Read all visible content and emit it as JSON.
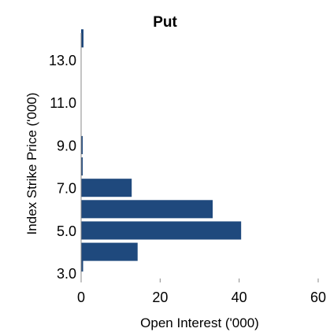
{
  "chart_data": {
    "type": "bar",
    "orientation": "horizontal",
    "title": "Put",
    "xlabel": "Open Interest ('000)",
    "ylabel": "Index Strike Price ('000)",
    "xlim": [
      0,
      60
    ],
    "x_ticks": [
      "0",
      "20",
      "40",
      "60"
    ],
    "y_ticks": [
      "3.0",
      "5.0",
      "7.0",
      "9.0",
      "11.0",
      "13.0"
    ],
    "ylim": [
      2.75,
      14.25
    ],
    "grid": false,
    "bar_color": "#1f497d",
    "series": [
      {
        "strikes": [
          3.5,
          4.0,
          5.0,
          6.0,
          7.0,
          8.0,
          9.0,
          14.0
        ],
        "values": [
          0.5,
          14.3,
          40.5,
          33.3,
          12.8,
          0.4,
          0.4,
          0.6
        ]
      }
    ]
  }
}
